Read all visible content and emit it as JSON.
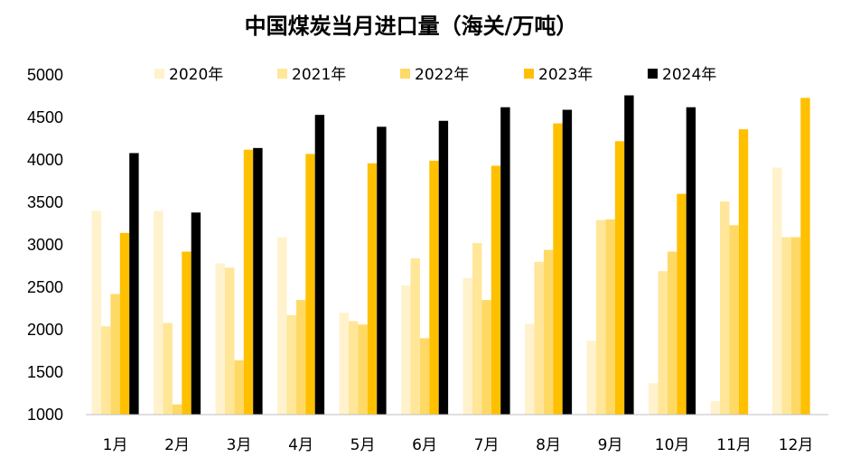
{
  "chart_data": {
    "type": "bar",
    "title": "中国煤炭当月进口量（海关/万吨）",
    "categories": [
      "1月",
      "2月",
      "3月",
      "4月",
      "5月",
      "6月",
      "7月",
      "8月",
      "9月",
      "10月",
      "11月",
      "12月"
    ],
    "ylim": [
      1000,
      5000
    ],
    "yticks": [
      1000,
      1500,
      2000,
      2500,
      3000,
      3500,
      4000,
      4500,
      5000
    ],
    "ytick_labels": [
      "1000",
      "1500",
      "2000",
      "2500",
      "3000",
      "3500",
      "4000",
      "4500",
      "5000"
    ],
    "grid": false,
    "legend_position": "top",
    "series": [
      {
        "name": "2020年",
        "color": "#FFF2CC",
        "values": [
          3400,
          3400,
          2780,
          3090,
          2200,
          2520,
          2610,
          2070,
          1870,
          1370,
          1160,
          3910
        ]
      },
      {
        "name": "2021年",
        "color": "#FFE699",
        "values": [
          2040,
          2080,
          2730,
          2170,
          2100,
          2840,
          3020,
          2800,
          3290,
          2690,
          3510,
          3090
        ]
      },
      {
        "name": "2022年",
        "color": "#FFD966",
        "values": [
          2420,
          1120,
          1640,
          2350,
          2060,
          1900,
          2350,
          2940,
          3300,
          2920,
          3230,
          3090
        ]
      },
      {
        "name": "2023年",
        "color": "#FFC000",
        "values": [
          3140,
          2920,
          4120,
          4070,
          3960,
          3990,
          3930,
          4430,
          4220,
          3600,
          4360,
          4730
        ]
      },
      {
        "name": "2024年",
        "color": "#000000",
        "values": [
          4080,
          3380,
          4140,
          4530,
          4390,
          4460,
          4620,
          4590,
          4760,
          4620,
          null,
          null
        ]
      }
    ]
  }
}
